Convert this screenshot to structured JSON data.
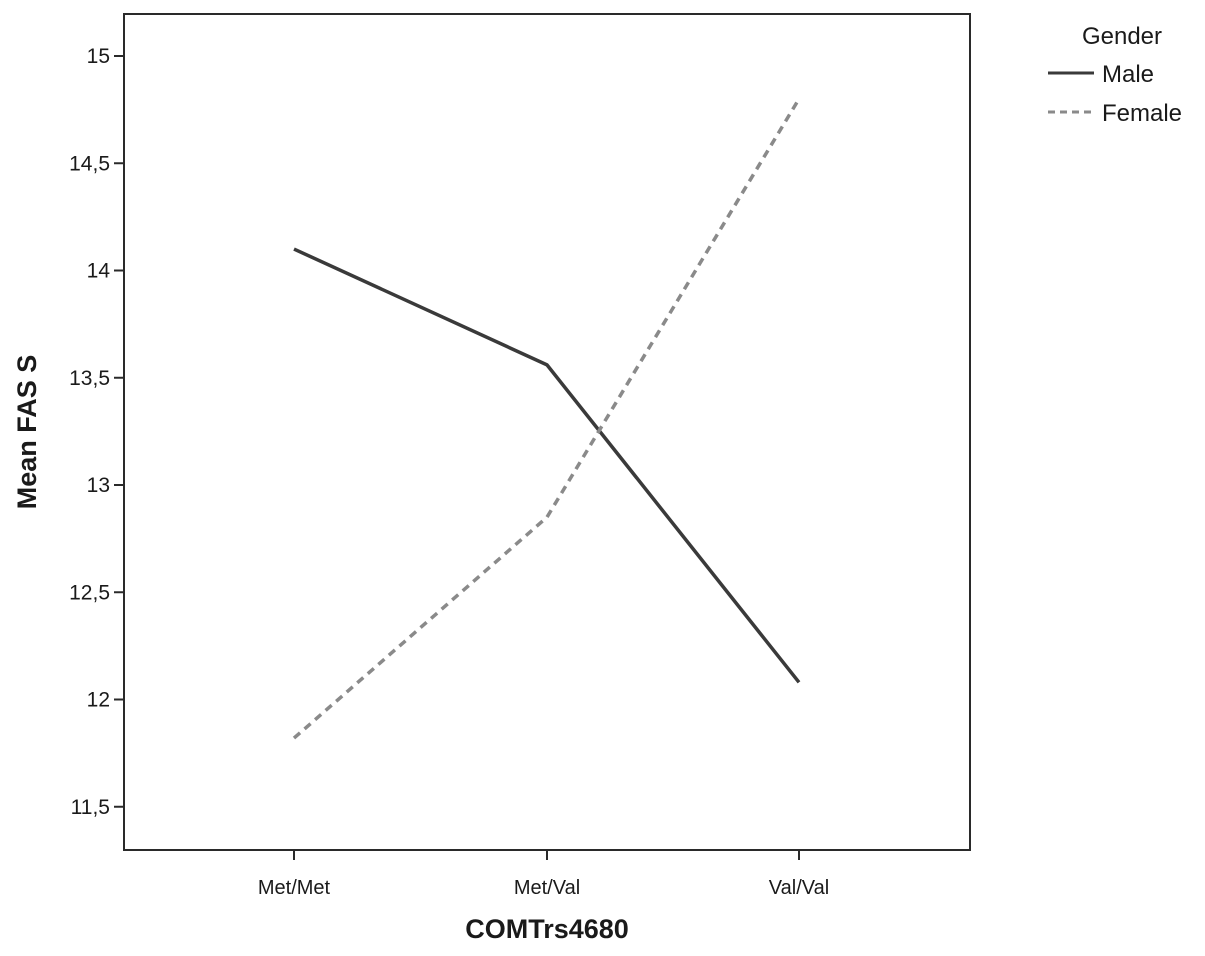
{
  "chart_data": {
    "type": "line",
    "xlabel": "COMTrs4680",
    "ylabel": "Mean FAS S",
    "categories": [
      "Met/Met",
      "Met/Val",
      "Val/Val"
    ],
    "ylim": [
      11.4,
      15.1
    ],
    "yticks": [
      11.5,
      12,
      12.5,
      13,
      13.5,
      14,
      14.5,
      15
    ],
    "ytick_labels": [
      "11,5",
      "12",
      "12,5",
      "13",
      "13,5",
      "14",
      "14,5",
      "15"
    ],
    "grid": false,
    "legend": {
      "title": "Gender",
      "placement": "top-right outside"
    },
    "series": [
      {
        "name": "Male",
        "values": [
          14.1,
          13.56,
          12.08
        ],
        "style": "solid",
        "color": "#3a3a3a"
      },
      {
        "name": "Female",
        "values": [
          11.82,
          12.85,
          14.8
        ],
        "style": "dashed",
        "color": "#8a8a8a"
      }
    ]
  }
}
